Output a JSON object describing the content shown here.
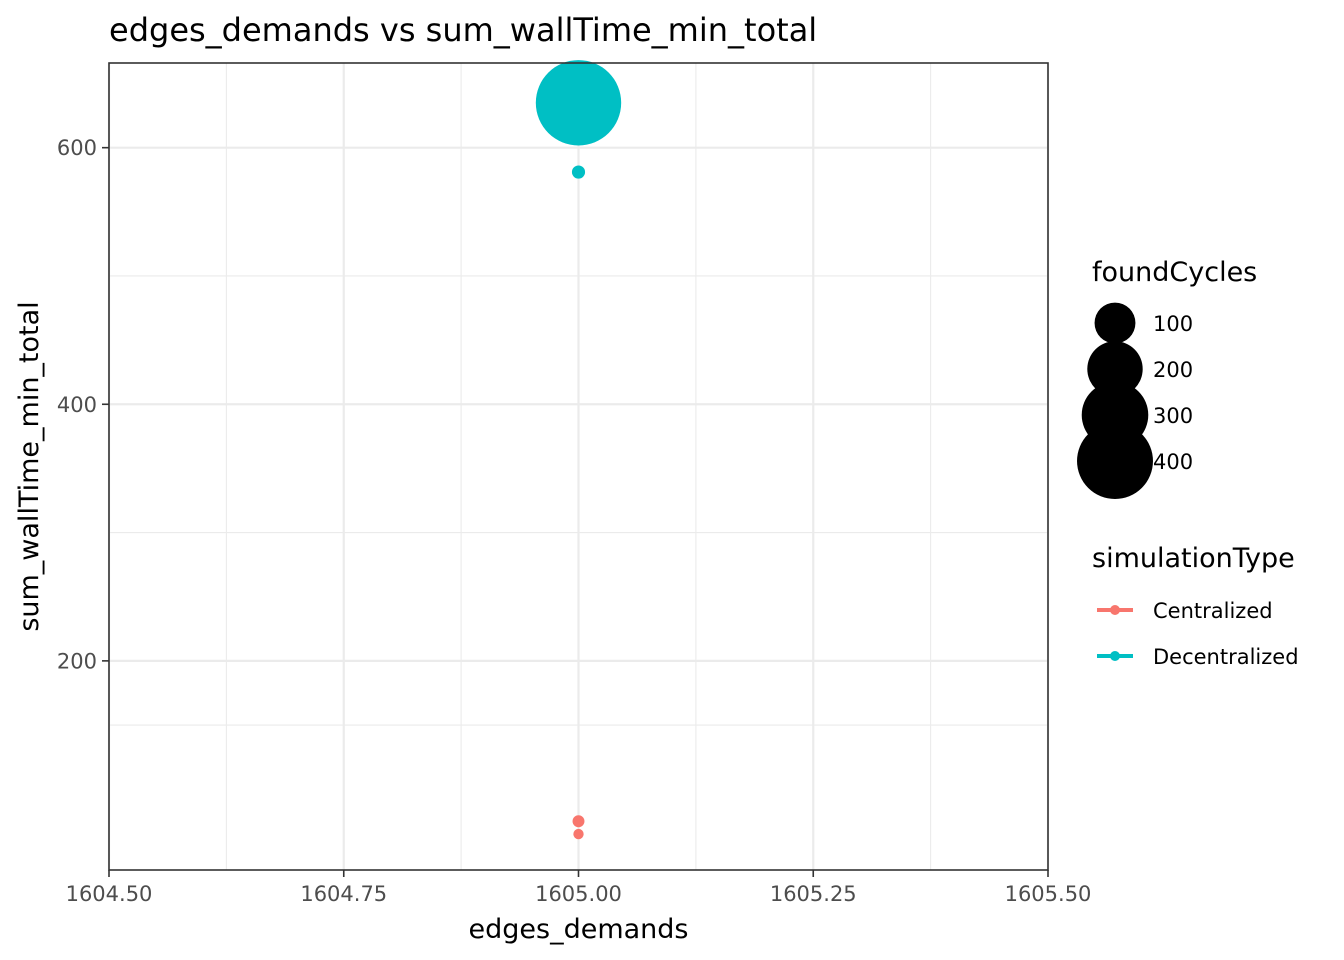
{
  "chart_data": {
    "type": "scatter",
    "title": "edges_demands  vs  sum_wallTime_min_total",
    "xlabel": "edges_demands",
    "ylabel": "sum_wallTime_min_total",
    "xlim": [
      1604.5,
      1605.5
    ],
    "ylim": [
      37,
      666
    ],
    "x_ticks": [
      {
        "value": 1604.5,
        "label": "1604.50"
      },
      {
        "value": 1604.75,
        "label": "1604.75"
      },
      {
        "value": 1605.0,
        "label": "1605.00"
      },
      {
        "value": 1605.25,
        "label": "1605.25"
      },
      {
        "value": 1605.5,
        "label": "1605.50"
      }
    ],
    "y_ticks": [
      {
        "value": 200,
        "label": "200"
      },
      {
        "value": 400,
        "label": "400"
      },
      {
        "value": 600,
        "label": "600"
      }
    ],
    "grid": true,
    "size_legend": {
      "title": "foundCycles",
      "placement": "right",
      "entries": [
        {
          "value": 100,
          "label": "100"
        },
        {
          "value": 200,
          "label": "200"
        },
        {
          "value": 300,
          "label": "300"
        },
        {
          "value": 400,
          "label": "400"
        }
      ]
    },
    "color_legend": {
      "title": "simulationType",
      "placement": "right",
      "entries": [
        {
          "name": "Centralized",
          "color": "#F8766D"
        },
        {
          "name": "Decentralized",
          "color": "#00BFC4"
        }
      ]
    },
    "series": [
      {
        "name": "Centralized",
        "color": "#F8766D",
        "points": [
          {
            "x": 1605.0,
            "y": 75,
            "foundCycles": 2
          },
          {
            "x": 1605.0,
            "y": 65,
            "foundCycles": 1
          }
        ]
      },
      {
        "name": "Decentralized",
        "color": "#00BFC4",
        "points": [
          {
            "x": 1605.0,
            "y": 635,
            "foundCycles": 410
          },
          {
            "x": 1605.0,
            "y": 581,
            "foundCycles": 3
          }
        ]
      }
    ]
  }
}
